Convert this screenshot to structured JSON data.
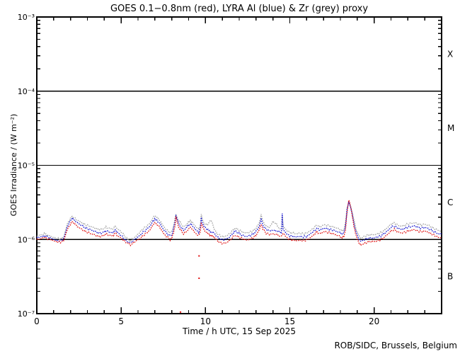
{
  "chart_data": {
    "type": "line",
    "title": "GOES 0.1−0.8nm (red), LYRA Al (blue) & Zr (grey) proxy",
    "xlabel": "Time / h UTC, 15 Sep 2025",
    "ylabel": "GOES Irradiance / (W m⁻²)",
    "credit": "ROB/SIDC, Brussels, Belgium",
    "xlim": [
      0,
      24
    ],
    "x_minor_step_h": 1,
    "x_ticks": [
      {
        "t": 0,
        "label": "0"
      },
      {
        "t": 5,
        "label": "5"
      },
      {
        "t": 10,
        "label": "10"
      },
      {
        "t": 15,
        "label": "15"
      },
      {
        "t": 20,
        "label": "20"
      }
    ],
    "ylog": true,
    "ylim_exp": [
      -7,
      -3
    ],
    "y_ticks": [
      {
        "exp": -3,
        "label": "10⁻³"
      },
      {
        "exp": -4,
        "label": "10⁻⁴"
      },
      {
        "exp": -5,
        "label": "10⁻⁵"
      },
      {
        "exp": -6,
        "label": "10⁻⁶"
      },
      {
        "exp": -7,
        "label": "10⁻⁷"
      }
    ],
    "class_boundary_exps": [
      -4,
      -5,
      -6
    ],
    "flare_classes": [
      {
        "label": "X",
        "center_exp": -3.5
      },
      {
        "label": "M",
        "center_exp": -4.5
      },
      {
        "label": "C",
        "center_exp": -5.5
      },
      {
        "label": "B",
        "center_exp": -6.5
      }
    ],
    "value_scale": 1e-06,
    "t_hours": [
      0.0,
      0.2,
      0.4,
      0.5,
      0.6,
      0.8,
      1.0,
      1.2,
      1.4,
      1.6,
      1.8,
      2.0,
      2.1,
      2.2,
      2.4,
      2.6,
      2.8,
      3.0,
      3.2,
      3.4,
      3.6,
      3.8,
      4.0,
      4.1,
      4.3,
      4.5,
      4.65,
      4.8,
      5.0,
      5.2,
      5.4,
      5.55,
      5.7,
      5.9,
      6.1,
      6.3,
      6.5,
      6.7,
      6.9,
      7.0,
      7.1,
      7.3,
      7.5,
      7.7,
      7.9,
      8.0,
      8.1,
      8.2,
      8.25,
      8.3,
      8.4,
      8.5,
      8.7,
      8.9,
      9.0,
      9.1,
      9.2,
      9.4,
      9.6,
      9.7,
      9.75,
      9.8,
      9.9,
      10.1,
      10.2,
      10.3,
      10.4,
      10.5,
      10.7,
      10.9,
      11.1,
      11.3,
      11.5,
      11.7,
      11.8,
      12.0,
      12.2,
      12.4,
      12.6,
      12.8,
      13.0,
      13.2,
      13.3,
      13.4,
      13.6,
      13.8,
      14.0,
      14.2,
      14.4,
      14.5,
      14.55,
      14.6,
      14.8,
      15.0,
      15.2,
      15.4,
      15.6,
      15.8,
      16.0,
      16.2,
      16.4,
      16.6,
      16.8,
      17.0,
      17.2,
      17.4,
      17.6,
      17.8,
      18.0,
      18.1,
      18.2,
      18.3,
      18.4,
      18.5,
      18.6,
      18.7,
      18.8,
      18.9,
      19.0,
      19.1,
      19.2,
      19.4,
      19.6,
      19.8,
      20.0,
      20.2,
      20.4,
      20.6,
      20.8,
      21.0,
      21.2,
      21.4,
      21.6,
      21.8,
      22.0,
      22.2,
      22.4,
      22.6,
      22.8,
      23.0,
      23.2,
      23.4,
      23.6,
      23.8,
      24.0
    ],
    "series": [
      {
        "name": "GOES 0.1−0.8nm",
        "color": "#e01010",
        "values": [
          1.0,
          1.02,
          1.05,
          1.07,
          1.02,
          1.0,
          0.96,
          0.93,
          0.92,
          0.97,
          1.35,
          1.62,
          1.75,
          1.66,
          1.5,
          1.4,
          1.31,
          1.25,
          1.2,
          1.16,
          1.11,
          1.09,
          1.14,
          1.19,
          1.14,
          1.12,
          1.22,
          1.12,
          1.04,
          0.95,
          0.88,
          0.85,
          0.89,
          0.96,
          1.02,
          1.12,
          1.22,
          1.33,
          1.59,
          1.69,
          1.62,
          1.45,
          1.22,
          1.09,
          1.0,
          1.03,
          1.22,
          1.55,
          2.0,
          1.8,
          1.5,
          1.36,
          1.19,
          1.3,
          1.39,
          1.45,
          1.39,
          1.22,
          1.12,
          1.3,
          1.69,
          1.55,
          1.36,
          1.22,
          1.18,
          1.14,
          1.11,
          1.09,
          0.96,
          0.9,
          0.88,
          0.92,
          1.0,
          1.12,
          1.14,
          1.07,
          1.02,
          0.98,
          1.0,
          1.05,
          1.14,
          1.36,
          1.62,
          1.39,
          1.22,
          1.17,
          1.19,
          1.17,
          1.12,
          1.1,
          1.15,
          1.22,
          1.07,
          1.0,
          0.98,
          0.96,
          0.98,
          0.96,
          0.98,
          1.05,
          1.14,
          1.27,
          1.19,
          1.27,
          1.25,
          1.22,
          1.19,
          1.14,
          1.1,
          1.05,
          1.09,
          1.36,
          2.36,
          3.5,
          2.8,
          2.11,
          1.52,
          1.19,
          1.02,
          0.9,
          0.84,
          0.88,
          0.92,
          0.94,
          0.94,
          0.96,
          1.0,
          1.07,
          1.17,
          1.3,
          1.36,
          1.27,
          1.22,
          1.25,
          1.3,
          1.33,
          1.36,
          1.3,
          1.27,
          1.3,
          1.25,
          1.19,
          1.12,
          1.07,
          1.05
        ]
      },
      {
        "name": "LYRA Al proxy",
        "color": "#1515cf",
        "values": [
          1.06,
          1.08,
          1.11,
          1.13,
          1.08,
          1.05,
          1.0,
          0.97,
          0.96,
          1.02,
          1.48,
          1.8,
          1.95,
          1.85,
          1.68,
          1.57,
          1.47,
          1.4,
          1.35,
          1.3,
          1.24,
          1.21,
          1.26,
          1.32,
          1.26,
          1.23,
          1.35,
          1.23,
          1.13,
          1.01,
          0.93,
          0.9,
          0.95,
          1.04,
          1.13,
          1.25,
          1.37,
          1.5,
          1.79,
          1.9,
          1.82,
          1.63,
          1.37,
          1.22,
          1.12,
          1.15,
          1.37,
          1.75,
          2.1,
          1.95,
          1.65,
          1.52,
          1.33,
          1.46,
          1.56,
          1.63,
          1.56,
          1.37,
          1.25,
          1.46,
          1.95,
          1.74,
          1.52,
          1.37,
          1.32,
          1.28,
          1.25,
          1.22,
          1.08,
          1.01,
          0.99,
          1.03,
          1.12,
          1.26,
          1.28,
          1.2,
          1.14,
          1.1,
          1.12,
          1.18,
          1.28,
          1.52,
          1.9,
          1.56,
          1.37,
          1.31,
          1.33,
          1.31,
          1.26,
          1.23,
          2.2,
          1.37,
          1.2,
          1.12,
          1.1,
          1.08,
          1.1,
          1.08,
          1.1,
          1.18,
          1.28,
          1.42,
          1.33,
          1.42,
          1.4,
          1.37,
          1.33,
          1.28,
          1.23,
          1.18,
          1.22,
          1.52,
          2.55,
          3.2,
          2.75,
          2.2,
          1.66,
          1.33,
          1.14,
          1.01,
          0.94,
          0.99,
          1.03,
          1.05,
          1.05,
          1.08,
          1.12,
          1.2,
          1.31,
          1.46,
          1.52,
          1.42,
          1.37,
          1.4,
          1.46,
          1.49,
          1.52,
          1.46,
          1.42,
          1.46,
          1.4,
          1.33,
          1.26,
          1.2,
          1.18
        ]
      },
      {
        "name": "LYRA Zr proxy",
        "color": "#a0a0a0",
        "values": [
          1.12,
          1.14,
          1.18,
          1.2,
          1.14,
          1.11,
          1.06,
          1.03,
          1.02,
          1.08,
          1.6,
          1.95,
          2.06,
          1.97,
          1.82,
          1.72,
          1.62,
          1.55,
          1.49,
          1.44,
          1.38,
          1.36,
          1.41,
          1.47,
          1.41,
          1.38,
          1.51,
          1.38,
          1.27,
          1.12,
          1.0,
          0.96,
          1.02,
          1.12,
          1.25,
          1.39,
          1.51,
          1.65,
          1.98,
          2.1,
          2.01,
          1.8,
          1.51,
          1.35,
          1.24,
          1.27,
          1.51,
          1.93,
          2.16,
          2.05,
          1.82,
          1.69,
          1.47,
          1.61,
          1.72,
          1.8,
          1.72,
          1.51,
          1.38,
          1.61,
          2.2,
          1.92,
          1.69,
          1.55,
          1.7,
          1.8,
          1.72,
          1.4,
          1.19,
          1.11,
          1.09,
          1.14,
          1.24,
          1.39,
          1.42,
          1.33,
          1.26,
          1.22,
          1.24,
          1.3,
          1.42,
          1.69,
          2.2,
          1.73,
          1.51,
          1.45,
          1.75,
          1.62,
          1.39,
          1.36,
          2.2,
          1.51,
          1.33,
          1.24,
          1.22,
          1.19,
          1.22,
          1.19,
          1.22,
          1.3,
          1.42,
          1.57,
          1.47,
          1.57,
          1.55,
          1.51,
          1.47,
          1.42,
          1.36,
          1.3,
          1.35,
          1.69,
          2.7,
          3.1,
          2.85,
          2.35,
          1.83,
          1.47,
          1.26,
          1.12,
          1.04,
          1.09,
          1.14,
          1.16,
          1.16,
          1.19,
          1.24,
          1.33,
          1.45,
          1.61,
          1.68,
          1.57,
          1.51,
          1.55,
          1.61,
          1.65,
          1.68,
          1.61,
          1.57,
          1.61,
          1.55,
          1.47,
          1.39,
          1.33,
          1.3
        ]
      }
    ],
    "red_dropout_points": [
      [
        8.52,
        0.105
      ],
      [
        9.62,
        0.3
      ],
      [
        9.62,
        0.6
      ]
    ],
    "colors": {
      "frame": "#000000",
      "background": "#ffffff"
    }
  }
}
